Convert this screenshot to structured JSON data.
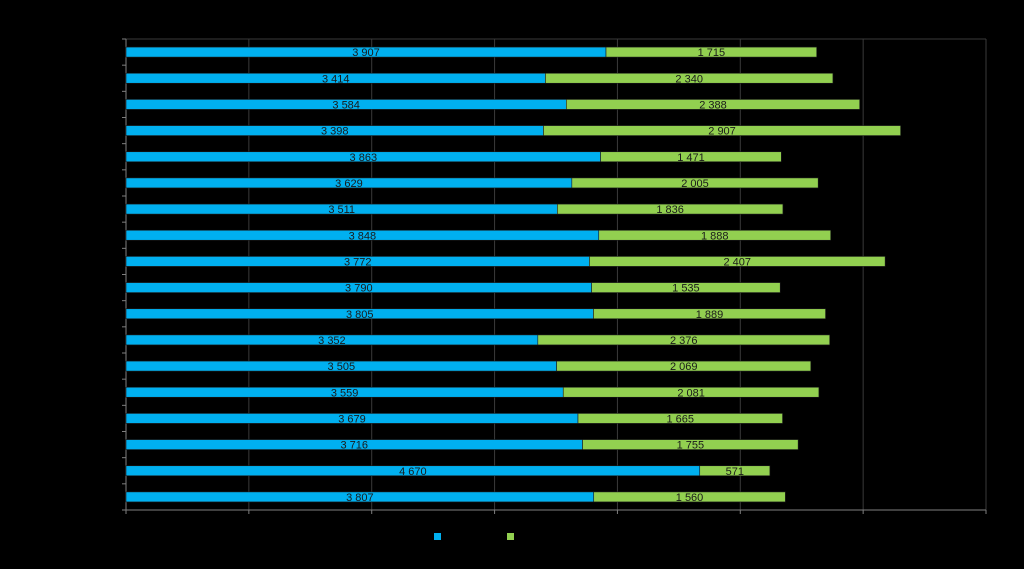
{
  "chart_data": {
    "type": "bar",
    "orientation": "horizontal",
    "stacked": true,
    "title": "",
    "xlabel": "",
    "ylabel": "",
    "xlim": [
      0,
      7000
    ],
    "grid": true,
    "legend_position": "bottom",
    "colors": [
      "#00b0f0",
      "#92d050"
    ],
    "series": [
      {
        "name": "",
        "color": "#00b0f0",
        "values": [
          3907,
          3414,
          3584,
          3398,
          3863,
          3629,
          3511,
          3848,
          3772,
          3790,
          3805,
          3352,
          3505,
          3559,
          3679,
          3716,
          4670,
          3807
        ],
        "labels": [
          "3 907",
          "3 414",
          "3 584",
          "3 398",
          "3 863",
          "3 629",
          "3 511",
          "3 848",
          "3 772",
          "3 790",
          "3 805",
          "3 352",
          "3 505",
          "3 559",
          "3 679",
          "3 716",
          "4 670",
          "3 807"
        ]
      },
      {
        "name": "",
        "color": "#92d050",
        "values": [
          1715,
          2340,
          2388,
          2907,
          1471,
          2005,
          1836,
          1888,
          2407,
          1535,
          1889,
          2376,
          2069,
          2081,
          1665,
          1755,
          571,
          1560
        ],
        "labels": [
          "1 715",
          "2 340",
          "2 388",
          "2 907",
          "1 471",
          "2 005",
          "1 836",
          "1 888",
          "2 407",
          "1 535",
          "1 889",
          "2 376",
          "2 069",
          "2 081",
          "1 665",
          "1 755",
          "571",
          "1 560"
        ]
      }
    ]
  }
}
